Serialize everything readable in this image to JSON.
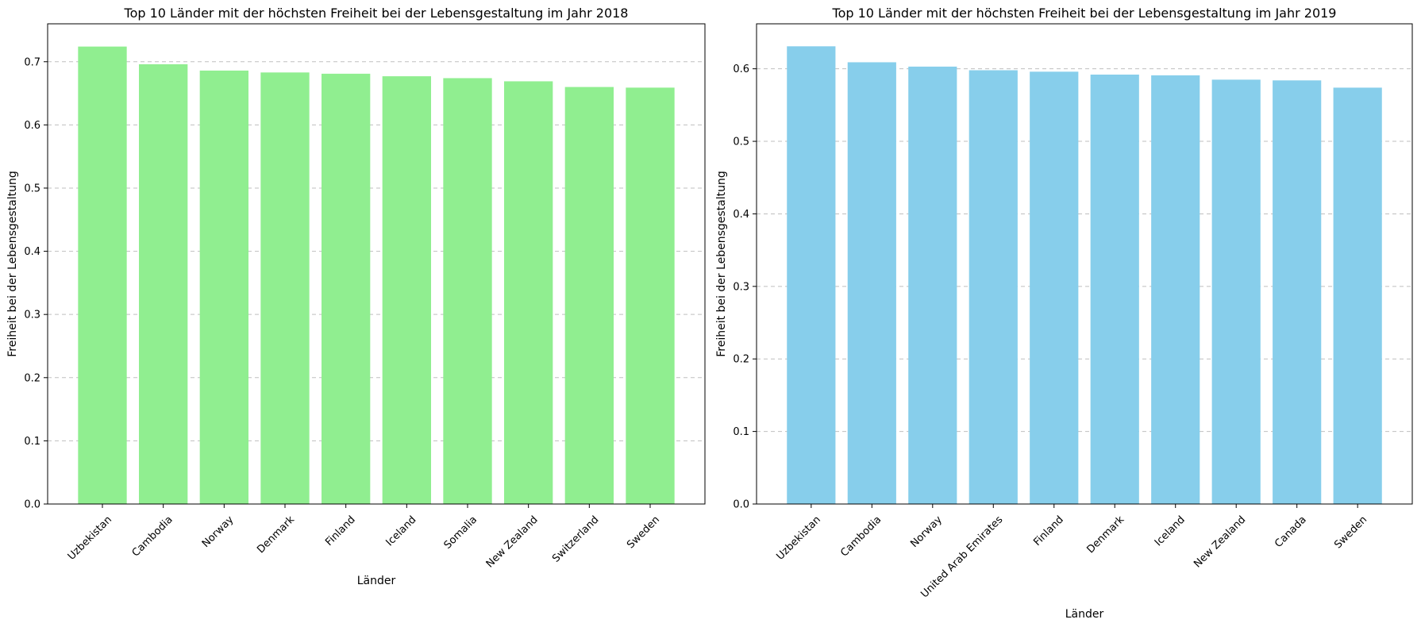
{
  "chart_data": [
    {
      "type": "bar",
      "title": "Top 10 Länder mit der höchsten Freiheit bei der Lebensgestaltung im Jahr 2018",
      "xlabel": "Länder",
      "ylabel": "Freiheit bei der Lebensgestaltung",
      "categories": [
        "Uzbekistan",
        "Cambodia",
        "Norway",
        "Denmark",
        "Finland",
        "Iceland",
        "Somalia",
        "New Zealand",
        "Switzerland",
        "Sweden"
      ],
      "values": [
        0.724,
        0.696,
        0.686,
        0.683,
        0.681,
        0.677,
        0.674,
        0.669,
        0.66,
        0.659
      ],
      "ylim": [
        0,
        0.76
      ],
      "yticks": [
        0.0,
        0.1,
        0.2,
        0.3,
        0.4,
        0.5,
        0.6,
        0.7
      ],
      "color": "#90ee90",
      "grid": "y dashed"
    },
    {
      "type": "bar",
      "title": "Top 10 Länder mit der höchsten Freiheit bei der Lebensgestaltung im Jahr 2019",
      "xlabel": "Länder",
      "ylabel": "Freiheit bei der Lebensgestaltung",
      "categories": [
        "Uzbekistan",
        "Cambodia",
        "Norway",
        "United Arab Emirates",
        "Finland",
        "Denmark",
        "Iceland",
        "New Zealand",
        "Canada",
        "Sweden"
      ],
      "values": [
        0.631,
        0.609,
        0.603,
        0.598,
        0.596,
        0.592,
        0.591,
        0.585,
        0.584,
        0.574
      ],
      "ylim": [
        0,
        0.662
      ],
      "yticks": [
        0.0,
        0.1,
        0.2,
        0.3,
        0.4,
        0.5,
        0.6
      ],
      "color": "#87ceeb",
      "grid": "y dashed"
    }
  ]
}
